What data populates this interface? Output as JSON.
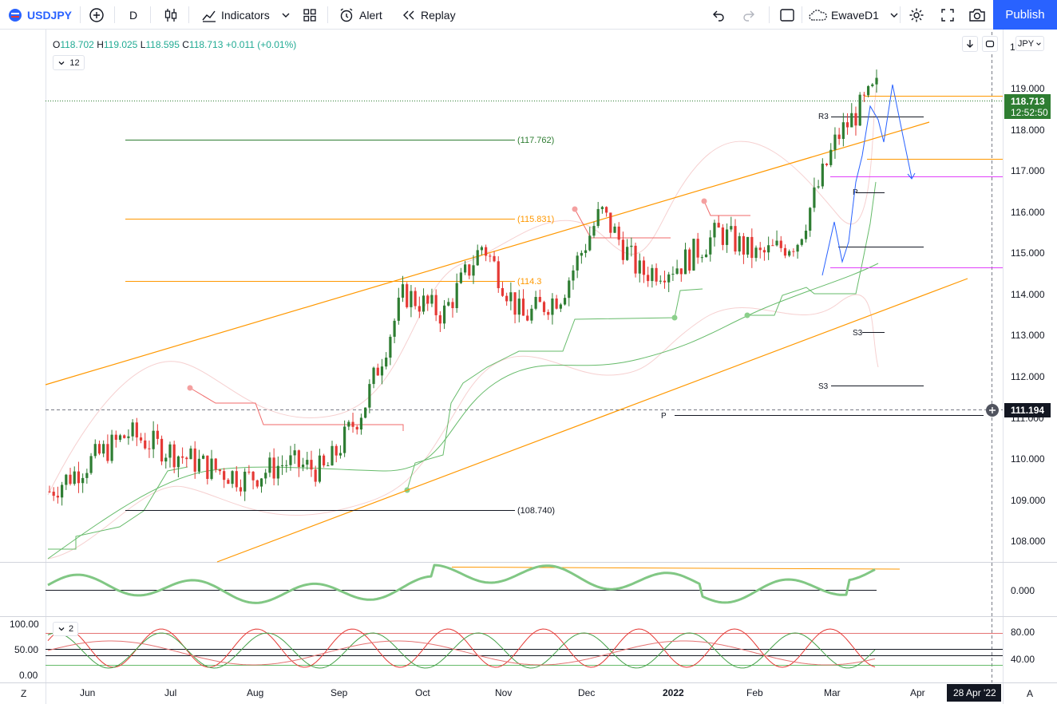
{
  "toolbar": {
    "symbol": "USDJPY",
    "interval": "D",
    "indicators": "Indicators",
    "alert": "Alert",
    "replay": "Replay",
    "layout_name": "EwaveD1",
    "publish": "Publish"
  },
  "legend": {
    "o_label": "O",
    "o": "118.702",
    "h_label": "H",
    "h": "119.025",
    "l_label": "L",
    "l": "118.595",
    "c_label": "C",
    "c": "118.713",
    "chg": "+0.011 (+0.01%)",
    "collapse_count": "12",
    "osc_collapse_count": "2"
  },
  "price_scale": {
    "currency": "JPY",
    "top_partial": "1",
    "ticks": [
      "119.000",
      "118.000",
      "117.000",
      "116.000",
      "115.000",
      "114.000",
      "113.000",
      "112.000",
      "111.000",
      "110.000",
      "109.000",
      "108.000"
    ],
    "last_price": "118.713",
    "countdown": "12:52:50",
    "crosshair_price": "111.194",
    "osc1_tick": "0.000",
    "osc2_ticks": [
      "80.00",
      "40.00"
    ]
  },
  "osc2_left_ticks": [
    "100.00",
    "50.00",
    "0.00"
  ],
  "time_axis": {
    "labels": [
      "Jun",
      "Jul",
      "Aug",
      "Sep",
      "Oct",
      "Nov",
      "Dec",
      "2022",
      "Feb",
      "Mar",
      "Apr"
    ],
    "crosshair_date": "28 Apr '22",
    "left_button": "Z",
    "right_button": "A"
  },
  "annotations": {
    "levels": [
      "(117.762)",
      "(115.831)",
      "(114.3",
      "(108.740)"
    ],
    "pivots": [
      "R3",
      "P",
      "S3",
      "S3",
      "P"
    ]
  },
  "colors": {
    "up": "#26a69a",
    "down": "#ef5350",
    "candle_up": "#2e7d32",
    "candle_down": "#e53935",
    "channel": "#ff9800",
    "brand": "#2962ff",
    "psar_red": "#f06a6a",
    "psar_green": "#66bb6a",
    "bands": "#f5c6c6",
    "magenta": "#e040fb"
  },
  "chart_data": {
    "type": "line",
    "title": "USDJPY, D",
    "ylim": [
      107.5,
      119.5
    ],
    "x": [
      "May 28 2021",
      "Jun 15 2021",
      "Jul 1 2021",
      "Jul 15 2021",
      "Aug 1 2021",
      "Aug 15 2021",
      "Sep 1 2021",
      "Sep 15 2021",
      "Sep 30 2021",
      "Oct 20 2021",
      "Nov 5 2021",
      "Nov 24 2021",
      "Dec 5 2021",
      "Dec 20 2021",
      "Jan 4 2022",
      "Jan 20 2022",
      "Feb 1 2022",
      "Feb 15 2022",
      "Mar 1 2022",
      "Mar 7 2022",
      "Mar 15 2022",
      "Mar 21 2022"
    ],
    "series": [
      {
        "values": [
          109.2,
          109.9,
          110.6,
          110.2,
          109.8,
          109.5,
          109.9,
          109.7,
          111.3,
          114.0,
          113.5,
          115.2,
          113.4,
          114.0,
          116.0,
          114.5,
          114.7,
          115.5,
          114.9,
          115.3,
          117.8,
          119.0
        ]
      }
    ],
    "ohlc_last": {
      "open": 118.702,
      "high": 119.025,
      "low": 118.595,
      "close": 118.713
    },
    "horizontal_levels": [
      117.762,
      115.831,
      114.3,
      108.74
    ]
  }
}
